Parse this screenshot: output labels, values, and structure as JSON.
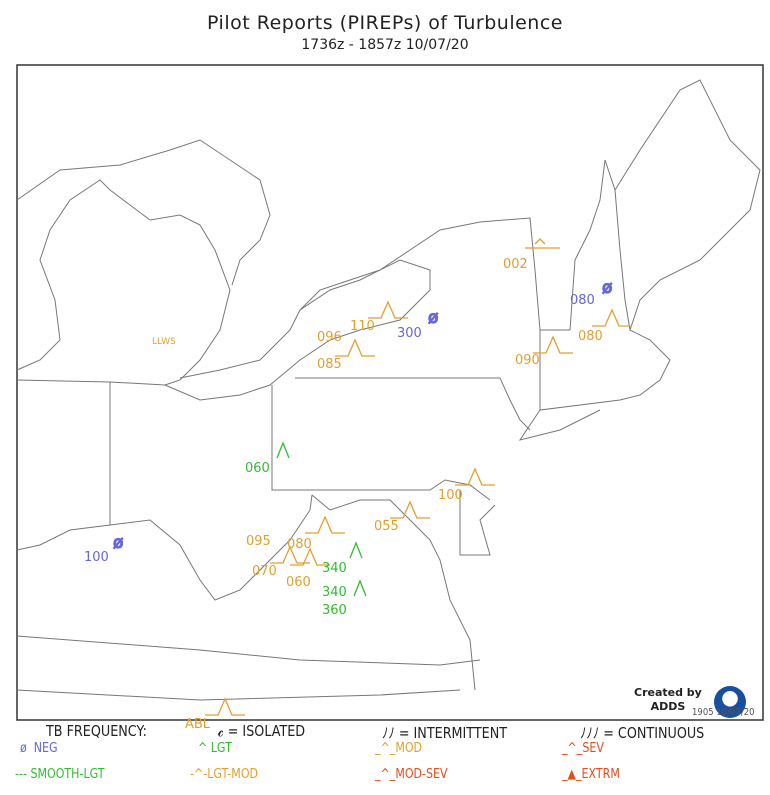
{
  "title": "Pilot Reports (PIREPs) of Turbulence",
  "subtitle": "1736z - 1857z  10/07/20",
  "colors": {
    "neg": "#6666dd",
    "lgt": "#33bb33",
    "mod": "#e0a030",
    "sev": "#e05020",
    "border": "#777777"
  },
  "reports": [
    {
      "label": "LLWS",
      "color": "mod",
      "symbol": "none"
    },
    {
      "label": "002",
      "color": "mod",
      "symbol": "llws"
    },
    {
      "label": "080",
      "color": "neg",
      "symbol": "neg"
    },
    {
      "label": "080",
      "color": "mod",
      "symbol": "mod"
    },
    {
      "label": "090",
      "color": "mod",
      "symbol": "mod"
    },
    {
      "label": "110",
      "color": "mod",
      "symbol": "mod"
    },
    {
      "label": "300",
      "color": "neg",
      "symbol": "neg"
    },
    {
      "label": "096",
      "color": "mod",
      "symbol": "none"
    },
    {
      "label": "085",
      "color": "mod",
      "symbol": "mod"
    },
    {
      "label": "060",
      "color": "lgt",
      "symbol": "lgt"
    },
    {
      "label": "100",
      "color": "mod",
      "symbol": "mod"
    },
    {
      "label": "055",
      "color": "mod",
      "symbol": "mod"
    },
    {
      "label": "100",
      "color": "neg",
      "symbol": "neg"
    },
    {
      "label": "080",
      "color": "mod",
      "symbol": "mod"
    },
    {
      "label": "095",
      "color": "mod",
      "symbol": "none"
    },
    {
      "label": "070",
      "color": "mod",
      "symbol": "lgt-mod"
    },
    {
      "label": "060",
      "color": "mod",
      "symbol": "mod"
    },
    {
      "label": "340",
      "color": "lgt",
      "symbol": "lgt"
    },
    {
      "label": "340",
      "color": "lgt",
      "symbol": "lgt"
    },
    {
      "label": "360",
      "color": "lgt",
      "symbol": "none"
    },
    {
      "label": "ABL",
      "color": "mod",
      "symbol": "mod"
    }
  ],
  "legend": {
    "frequency_label": "TB FREQUENCY:",
    "isolated": "= ISOLATED",
    "intermittent": "= INTERMITTENT",
    "continuous": "= CONTINUOUS",
    "items": [
      "NEG",
      "LGT",
      "MOD",
      "SEV",
      "SMOOTH-LGT",
      "LGT-MOD",
      "MOD-SEV",
      "EXTRM"
    ]
  },
  "credit": {
    "line1": "Created by",
    "line2": "ADDS",
    "stamp": "1905 10/07/20"
  }
}
